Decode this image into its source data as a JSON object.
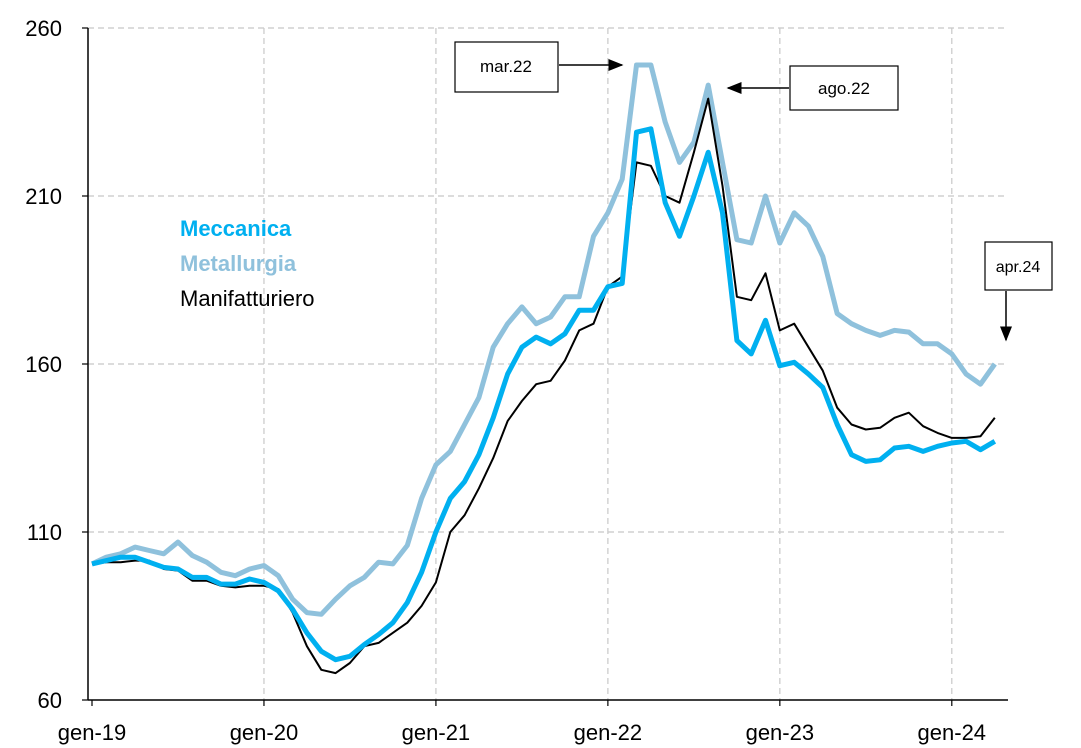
{
  "chart_data": {
    "type": "line",
    "categories": [
      "gen-19",
      null,
      null,
      null,
      null,
      null,
      null,
      null,
      null,
      null,
      null,
      null,
      "gen-20",
      null,
      null,
      null,
      null,
      null,
      null,
      null,
      null,
      null,
      null,
      null,
      "gen-21",
      null,
      null,
      null,
      null,
      null,
      null,
      null,
      null,
      null,
      null,
      null,
      "gen-22",
      null,
      null,
      null,
      null,
      null,
      null,
      null,
      null,
      null,
      null,
      null,
      "gen-23",
      null,
      null,
      null,
      null,
      null,
      null,
      null,
      null,
      null,
      null,
      null,
      "gen-24",
      null,
      null,
      null
    ],
    "series": [
      {
        "name": "Metallurgia",
        "color": "#8fc1dc",
        "values": [
          100.5,
          102.5,
          103.5,
          105.5,
          104.5,
          103.5,
          107,
          103,
          101,
          98,
          97,
          99,
          100,
          97,
          90,
          86,
          85.5,
          90,
          94,
          96.5,
          101,
          100.5,
          106,
          120,
          130,
          134,
          142,
          150,
          165,
          172,
          177,
          172,
          174,
          180,
          180,
          198,
          205,
          215,
          249,
          249,
          232,
          220,
          226,
          243,
          220,
          197,
          196,
          210,
          196,
          205,
          201,
          192,
          175,
          172,
          170,
          168.5,
          170,
          169.5,
          166,
          166,
          163,
          157,
          154,
          160
        ]
      },
      {
        "name": "Manifatturiero",
        "color": "#000000",
        "values": [
          100.5,
          101,
          101,
          101.5,
          101.5,
          99,
          98.5,
          95.5,
          95.5,
          94,
          93.5,
          94,
          94,
          93,
          86,
          76,
          69,
          68,
          71,
          76,
          77,
          80,
          83,
          88,
          95,
          110,
          115,
          123,
          132,
          143,
          149,
          154,
          155,
          161,
          170,
          172,
          183,
          186,
          220,
          219,
          210,
          208,
          223,
          239,
          213,
          180,
          179,
          187,
          170,
          172,
          165,
          158,
          147,
          142,
          140.5,
          141,
          144,
          145.5,
          141.5,
          139.5,
          138,
          138,
          138.5,
          144
        ]
      },
      {
        "name": "Meccanica",
        "color": "#00b0f0",
        "values": [
          100.5,
          101.5,
          102.5,
          102.5,
          101,
          99.5,
          99,
          96.5,
          96.5,
          94.5,
          94.5,
          96,
          95,
          92.5,
          87,
          80,
          74.5,
          72,
          73,
          76.5,
          79.5,
          83,
          89,
          98,
          110,
          120,
          125,
          133,
          144,
          157,
          165,
          168,
          166,
          169,
          176,
          176,
          183,
          184,
          229,
          230,
          208,
          198,
          210,
          223,
          205,
          167,
          163,
          173,
          159.5,
          160.5,
          157,
          153,
          142,
          133,
          131,
          131.5,
          135,
          135.5,
          134,
          135.5,
          136.5,
          137,
          134.5,
          137
        ]
      }
    ],
    "legend": [
      "Meccanica",
      "Metallurgia",
      "Manifatturiero"
    ],
    "annotations": [
      "mar.22",
      "ago.22",
      "apr.24"
    ],
    "ylim": [
      60,
      260
    ],
    "yticks": [
      60,
      110,
      160,
      210,
      260
    ],
    "grid": true
  }
}
